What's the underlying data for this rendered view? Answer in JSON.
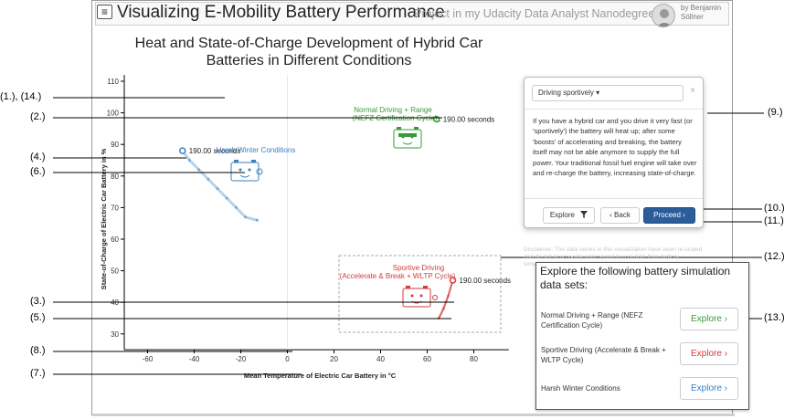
{
  "app": {
    "menu_icon": "hamburger-icon",
    "title": "Visualizing E-Mobility Battery Performance",
    "subtitle": "Project in my Udacity Data Analyst Nanodegree",
    "author_line1": "by Benjamin",
    "author_line2": "Söllner"
  },
  "chart_data": {
    "type": "scatter",
    "title_line1": "Heat and State-of-Charge Development of Hybrid Car",
    "title_line2": "Batteries in Different Conditions",
    "xlabel": "Mean Temperature of Electric Car Battery in °C",
    "ylabel": "State-of-Charge of Electric Car Battery in %",
    "xlim": [
      -70,
      95
    ],
    "ylim": [
      25,
      112
    ],
    "x_ticks": [
      -60,
      -40,
      -20,
      0,
      20,
      40,
      60,
      80
    ],
    "y_ticks": [
      30,
      40,
      50,
      60,
      70,
      80,
      90,
      100,
      110
    ],
    "series": [
      {
        "name": "Harsh Winter Conditions",
        "color": "#3a7fc1",
        "end_label": "190.00 seconds",
        "points": [
          [
            -45,
            88
          ],
          [
            -42,
            85
          ],
          [
            -38,
            82
          ],
          [
            -34,
            79
          ],
          [
            -30,
            76
          ],
          [
            -26,
            73
          ],
          [
            -22,
            70
          ],
          [
            -18,
            67
          ],
          [
            -13,
            66
          ]
        ]
      },
      {
        "name": "Normal Driving + Range",
        "subtitle": "(NEFZ Certification Cycle)",
        "color": "#3a9a3a",
        "end_label": "190.00 seconds",
        "points": [
          [
            64,
            98
          ],
          [
            65,
            97.5
          ]
        ]
      },
      {
        "name": "Sportive Driving",
        "subtitle": "(Accelerate & Break + WLTP Cycle)",
        "color": "#d63a3a",
        "end_label": "190.00 seconds",
        "points": [
          [
            65,
            35
          ],
          [
            67,
            38
          ],
          [
            69,
            42
          ],
          [
            71,
            47
          ]
        ]
      }
    ]
  },
  "callouts": [
    {
      "label": "(1.), (14.)"
    },
    {
      "label": "(2.)"
    },
    {
      "label": "(4.)"
    },
    {
      "label": "(6.)"
    },
    {
      "label": "(3.)"
    },
    {
      "label": "(5.)"
    },
    {
      "label": "(8.)"
    },
    {
      "label": "(7.)"
    },
    {
      "label": "(9.)"
    },
    {
      "label": "(10.)"
    },
    {
      "label": "(11.)"
    },
    {
      "label": "(12.)"
    },
    {
      "label": "(13.)"
    }
  ],
  "popover": {
    "select_value": "Driving sportively ▾",
    "close": "×",
    "text": "If you have a hybrid car and you drive it very fast (or 'sportively') the battery will heat up; after some 'boosts' of accelerating and breaking, the battery itself may not be able anymore to supply the full power. Your traditional fossil fuel engine will take over and re-charge the battery, increasing state-of-charge.",
    "explore_label": "Explore",
    "explore_icon": "filter-icon",
    "back_label": "‹  Back",
    "proceed_label": "Proceed  ›"
  },
  "disclaimer": "Disclaimer: The data series in this visualization have been re-scaled and do not necessarily correspond to real data from battery simulations.",
  "datasets": {
    "title": "Explore the following battery simulation data sets:",
    "items": [
      {
        "label": "Normal Driving + Range (NEFZ Certification Cycle)",
        "button": "Explore ›",
        "color": "#3a9a3a"
      },
      {
        "label": "Sportive Driving (Accelerate & Break + WLTP Cycle)",
        "button": "Explore ›",
        "color": "#d63a3a"
      },
      {
        "label": "Harsh Winter Conditions",
        "button": "Explore ›",
        "color": "#3a7fc1"
      }
    ]
  }
}
